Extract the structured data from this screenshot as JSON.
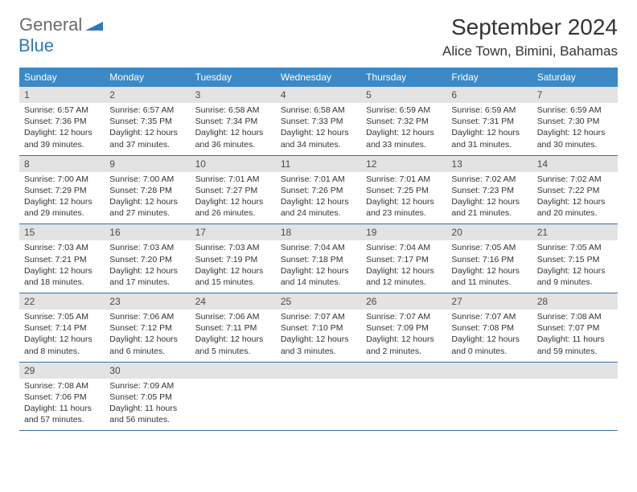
{
  "brand": {
    "general": "General",
    "blue": "Blue"
  },
  "title": "September 2024",
  "location": "Alice Town, Bimini, Bahamas",
  "colors": {
    "header_bg": "#3b89c7",
    "header_text": "#ffffff",
    "daynum_bg": "#e3e3e3",
    "daynum_text": "#4a4a4a",
    "row_border": "#3b6fa0",
    "logo_gray": "#6b6b6b",
    "logo_blue": "#2f78bf",
    "body_text": "#333333"
  },
  "day_headers": [
    "Sunday",
    "Monday",
    "Tuesday",
    "Wednesday",
    "Thursday",
    "Friday",
    "Saturday"
  ],
  "weeks": [
    [
      {
        "n": "1",
        "sr": "Sunrise: 6:57 AM",
        "ss": "Sunset: 7:36 PM",
        "d1": "Daylight: 12 hours",
        "d2": "and 39 minutes."
      },
      {
        "n": "2",
        "sr": "Sunrise: 6:57 AM",
        "ss": "Sunset: 7:35 PM",
        "d1": "Daylight: 12 hours",
        "d2": "and 37 minutes."
      },
      {
        "n": "3",
        "sr": "Sunrise: 6:58 AM",
        "ss": "Sunset: 7:34 PM",
        "d1": "Daylight: 12 hours",
        "d2": "and 36 minutes."
      },
      {
        "n": "4",
        "sr": "Sunrise: 6:58 AM",
        "ss": "Sunset: 7:33 PM",
        "d1": "Daylight: 12 hours",
        "d2": "and 34 minutes."
      },
      {
        "n": "5",
        "sr": "Sunrise: 6:59 AM",
        "ss": "Sunset: 7:32 PM",
        "d1": "Daylight: 12 hours",
        "d2": "and 33 minutes."
      },
      {
        "n": "6",
        "sr": "Sunrise: 6:59 AM",
        "ss": "Sunset: 7:31 PM",
        "d1": "Daylight: 12 hours",
        "d2": "and 31 minutes."
      },
      {
        "n": "7",
        "sr": "Sunrise: 6:59 AM",
        "ss": "Sunset: 7:30 PM",
        "d1": "Daylight: 12 hours",
        "d2": "and 30 minutes."
      }
    ],
    [
      {
        "n": "8",
        "sr": "Sunrise: 7:00 AM",
        "ss": "Sunset: 7:29 PM",
        "d1": "Daylight: 12 hours",
        "d2": "and 29 minutes."
      },
      {
        "n": "9",
        "sr": "Sunrise: 7:00 AM",
        "ss": "Sunset: 7:28 PM",
        "d1": "Daylight: 12 hours",
        "d2": "and 27 minutes."
      },
      {
        "n": "10",
        "sr": "Sunrise: 7:01 AM",
        "ss": "Sunset: 7:27 PM",
        "d1": "Daylight: 12 hours",
        "d2": "and 26 minutes."
      },
      {
        "n": "11",
        "sr": "Sunrise: 7:01 AM",
        "ss": "Sunset: 7:26 PM",
        "d1": "Daylight: 12 hours",
        "d2": "and 24 minutes."
      },
      {
        "n": "12",
        "sr": "Sunrise: 7:01 AM",
        "ss": "Sunset: 7:25 PM",
        "d1": "Daylight: 12 hours",
        "d2": "and 23 minutes."
      },
      {
        "n": "13",
        "sr": "Sunrise: 7:02 AM",
        "ss": "Sunset: 7:23 PM",
        "d1": "Daylight: 12 hours",
        "d2": "and 21 minutes."
      },
      {
        "n": "14",
        "sr": "Sunrise: 7:02 AM",
        "ss": "Sunset: 7:22 PM",
        "d1": "Daylight: 12 hours",
        "d2": "and 20 minutes."
      }
    ],
    [
      {
        "n": "15",
        "sr": "Sunrise: 7:03 AM",
        "ss": "Sunset: 7:21 PM",
        "d1": "Daylight: 12 hours",
        "d2": "and 18 minutes."
      },
      {
        "n": "16",
        "sr": "Sunrise: 7:03 AM",
        "ss": "Sunset: 7:20 PM",
        "d1": "Daylight: 12 hours",
        "d2": "and 17 minutes."
      },
      {
        "n": "17",
        "sr": "Sunrise: 7:03 AM",
        "ss": "Sunset: 7:19 PM",
        "d1": "Daylight: 12 hours",
        "d2": "and 15 minutes."
      },
      {
        "n": "18",
        "sr": "Sunrise: 7:04 AM",
        "ss": "Sunset: 7:18 PM",
        "d1": "Daylight: 12 hours",
        "d2": "and 14 minutes."
      },
      {
        "n": "19",
        "sr": "Sunrise: 7:04 AM",
        "ss": "Sunset: 7:17 PM",
        "d1": "Daylight: 12 hours",
        "d2": "and 12 minutes."
      },
      {
        "n": "20",
        "sr": "Sunrise: 7:05 AM",
        "ss": "Sunset: 7:16 PM",
        "d1": "Daylight: 12 hours",
        "d2": "and 11 minutes."
      },
      {
        "n": "21",
        "sr": "Sunrise: 7:05 AM",
        "ss": "Sunset: 7:15 PM",
        "d1": "Daylight: 12 hours",
        "d2": "and 9 minutes."
      }
    ],
    [
      {
        "n": "22",
        "sr": "Sunrise: 7:05 AM",
        "ss": "Sunset: 7:14 PM",
        "d1": "Daylight: 12 hours",
        "d2": "and 8 minutes."
      },
      {
        "n": "23",
        "sr": "Sunrise: 7:06 AM",
        "ss": "Sunset: 7:12 PM",
        "d1": "Daylight: 12 hours",
        "d2": "and 6 minutes."
      },
      {
        "n": "24",
        "sr": "Sunrise: 7:06 AM",
        "ss": "Sunset: 7:11 PM",
        "d1": "Daylight: 12 hours",
        "d2": "and 5 minutes."
      },
      {
        "n": "25",
        "sr": "Sunrise: 7:07 AM",
        "ss": "Sunset: 7:10 PM",
        "d1": "Daylight: 12 hours",
        "d2": "and 3 minutes."
      },
      {
        "n": "26",
        "sr": "Sunrise: 7:07 AM",
        "ss": "Sunset: 7:09 PM",
        "d1": "Daylight: 12 hours",
        "d2": "and 2 minutes."
      },
      {
        "n": "27",
        "sr": "Sunrise: 7:07 AM",
        "ss": "Sunset: 7:08 PM",
        "d1": "Daylight: 12 hours",
        "d2": "and 0 minutes."
      },
      {
        "n": "28",
        "sr": "Sunrise: 7:08 AM",
        "ss": "Sunset: 7:07 PM",
        "d1": "Daylight: 11 hours",
        "d2": "and 59 minutes."
      }
    ],
    [
      {
        "n": "29",
        "sr": "Sunrise: 7:08 AM",
        "ss": "Sunset: 7:06 PM",
        "d1": "Daylight: 11 hours",
        "d2": "and 57 minutes."
      },
      {
        "n": "30",
        "sr": "Sunrise: 7:09 AM",
        "ss": "Sunset: 7:05 PM",
        "d1": "Daylight: 11 hours",
        "d2": "and 56 minutes."
      },
      null,
      null,
      null,
      null,
      null
    ]
  ]
}
